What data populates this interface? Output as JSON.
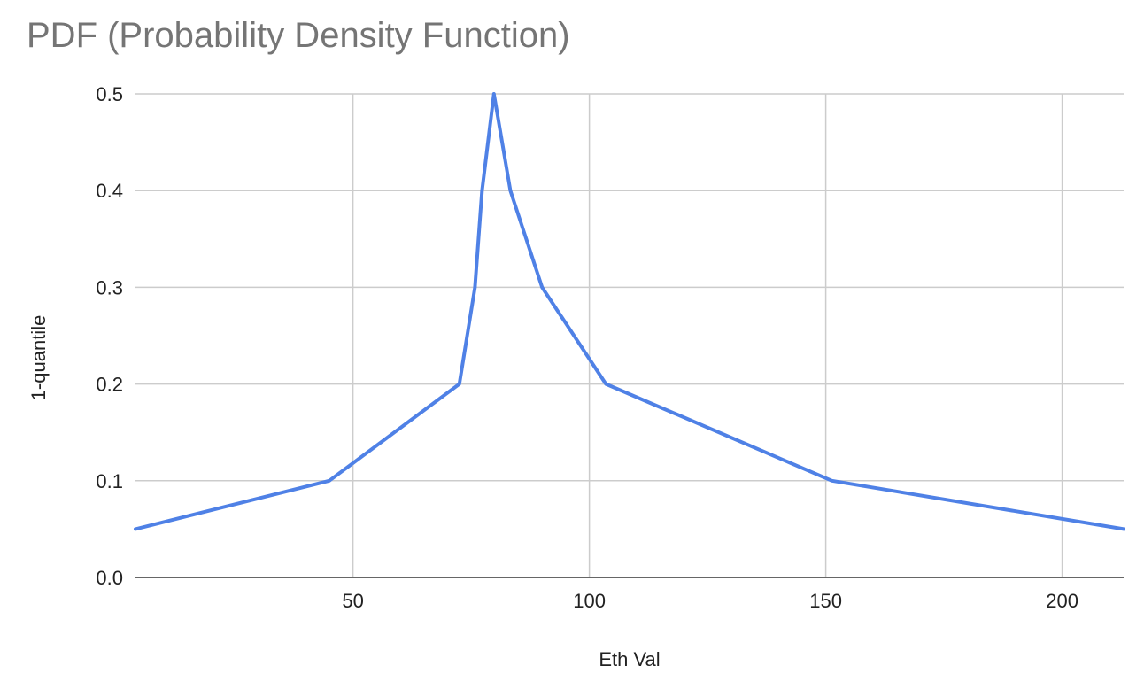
{
  "chart_data": {
    "type": "line",
    "title": "PDF (Probability Density Function)",
    "xlabel": "Eth Val",
    "ylabel": "1-quantile",
    "xlim": [
      4,
      213
    ],
    "ylim": [
      0,
      0.5
    ],
    "x_ticks": [
      50,
      100,
      150,
      200
    ],
    "y_ticks": [
      0.0,
      0.1,
      0.2,
      0.3,
      0.4,
      0.5
    ],
    "x_tick_labels": [
      "50",
      "100",
      "150",
      "200"
    ],
    "y_tick_labels": [
      "0.0",
      "0.1",
      "0.2",
      "0.3",
      "0.4",
      "0.5"
    ],
    "grid": true,
    "legend": "none",
    "series": [
      {
        "color": "#4f81e6",
        "points": [
          {
            "x": 4,
            "y": 0.05
          },
          {
            "x": 45,
            "y": 0.1
          },
          {
            "x": 72.5,
            "y": 0.2
          },
          {
            "x": 75.8,
            "y": 0.3
          },
          {
            "x": 77.3,
            "y": 0.4
          },
          {
            "x": 79.8,
            "y": 0.5
          },
          {
            "x": 83.3,
            "y": 0.4
          },
          {
            "x": 90,
            "y": 0.3
          },
          {
            "x": 103.5,
            "y": 0.2
          },
          {
            "x": 151.3,
            "y": 0.1
          },
          {
            "x": 213,
            "y": 0.05
          }
        ]
      }
    ]
  }
}
